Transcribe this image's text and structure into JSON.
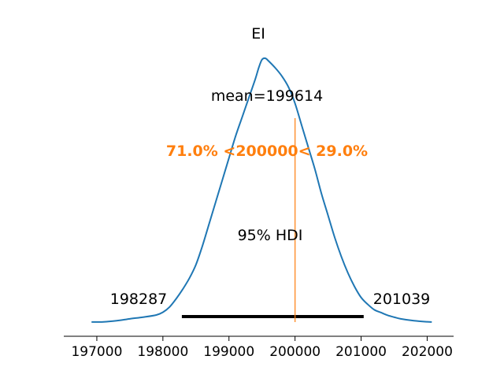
{
  "chart_data": {
    "type": "area",
    "title": "EI",
    "xlabel": "",
    "ylabel": "",
    "xlim": [
      196500,
      202400
    ],
    "x_ticks": [
      197000,
      198000,
      199000,
      200000,
      201000,
      202000
    ],
    "x_tick_labels": [
      "197000",
      "198000",
      "199000",
      "200000",
      "201000",
      "202000"
    ],
    "grid": false,
    "legend": "none",
    "density": {
      "x": [
        196920,
        197100,
        197300,
        197500,
        197700,
        197900,
        198000,
        198100,
        198200,
        198300,
        198400,
        198500,
        198600,
        198700,
        198800,
        198900,
        199000,
        199100,
        199200,
        199300,
        199400,
        199450,
        199500,
        199550,
        199600,
        199700,
        199800,
        199900,
        200000,
        200100,
        200200,
        200300,
        200400,
        200500,
        200600,
        200700,
        200800,
        200900,
        201000,
        201100,
        201200,
        201300,
        201400,
        201500,
        201600,
        201800,
        202000,
        202070
      ],
      "y": [
        0.0005,
        0.0008,
        0.005,
        0.012,
        0.018,
        0.026,
        0.036,
        0.055,
        0.085,
        0.12,
        0.16,
        0.21,
        0.28,
        0.36,
        0.44,
        0.52,
        0.6,
        0.68,
        0.75,
        0.82,
        0.89,
        0.93,
        0.96,
        0.965,
        0.955,
        0.93,
        0.9,
        0.86,
        0.8,
        0.72,
        0.64,
        0.56,
        0.47,
        0.39,
        0.31,
        0.24,
        0.18,
        0.13,
        0.09,
        0.065,
        0.045,
        0.035,
        0.025,
        0.018,
        0.012,
        0.005,
        0.001,
        0.0005
      ]
    },
    "hdi": {
      "label": "95% HDI",
      "low": 198287,
      "high": 201039,
      "low_label": "198287",
      "high_label": "201039"
    },
    "mean_label": "mean=199614",
    "reference": {
      "value": 200000,
      "label": "71.0% <200000< 29.0%"
    },
    "colors": {
      "line": "#1f77b4",
      "reference": "#ff7f0e",
      "hdi": "#000000",
      "axis": "#000000"
    }
  }
}
